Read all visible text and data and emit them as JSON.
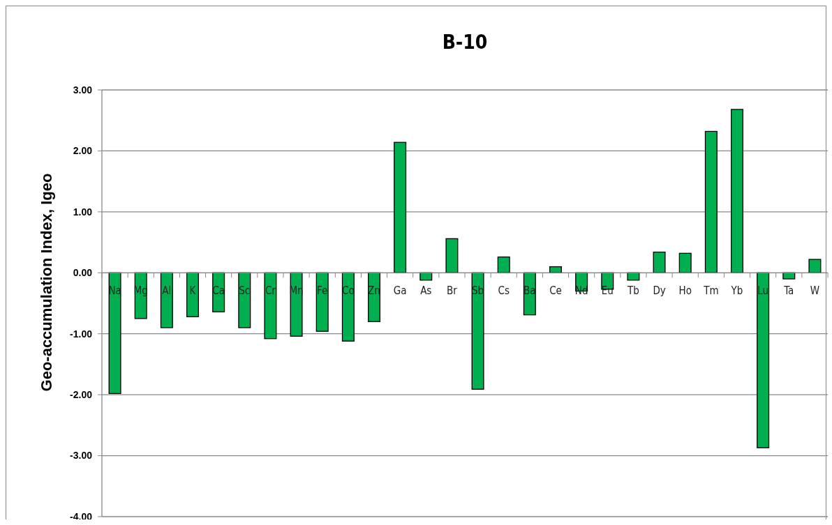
{
  "chart_data": {
    "type": "bar",
    "title": "B-10",
    "ylabel": "Geo-accumulation Index, Igeo",
    "categories": [
      "Na",
      "Mg",
      "Al",
      "K",
      "Ca",
      "Sc",
      "Cr",
      "Mn",
      "Fe",
      "Co",
      "Zn",
      "Ga",
      "As",
      "Br",
      "Sb",
      "Cs",
      "Ba",
      "Ce",
      "Nd",
      "Eu",
      "Tb",
      "Dy",
      "Ho",
      "Tm",
      "Yb",
      "Lu",
      "Ta",
      "W"
    ],
    "series": [
      {
        "color": "#00b050",
        "values": [
          -1.98,
          -0.75,
          -0.9,
          -0.72,
          -0.64,
          -0.9,
          -1.08,
          -1.04,
          -0.96,
          -1.12,
          -0.8,
          2.14,
          -0.12,
          0.56,
          -1.91,
          0.26,
          -0.69,
          0.1,
          -0.3,
          -0.27,
          -0.12,
          0.34,
          0.32,
          2.32,
          2.68,
          -2.87,
          -0.1,
          0.22
        ]
      }
    ],
    "ylim": [
      -4,
      3
    ],
    "yticks": [
      {
        "value": -4,
        "label": "-4.00"
      },
      {
        "value": -3,
        "label": "-3.00"
      },
      {
        "value": -2,
        "label": "-2.00"
      },
      {
        "value": -1,
        "label": "-1.00"
      },
      {
        "value": 0,
        "label": "0.00"
      },
      {
        "value": 1,
        "label": "1.00"
      },
      {
        "value": 2,
        "label": "2.00"
      },
      {
        "value": 3,
        "label": "3.00"
      }
    ],
    "grid": "y"
  }
}
